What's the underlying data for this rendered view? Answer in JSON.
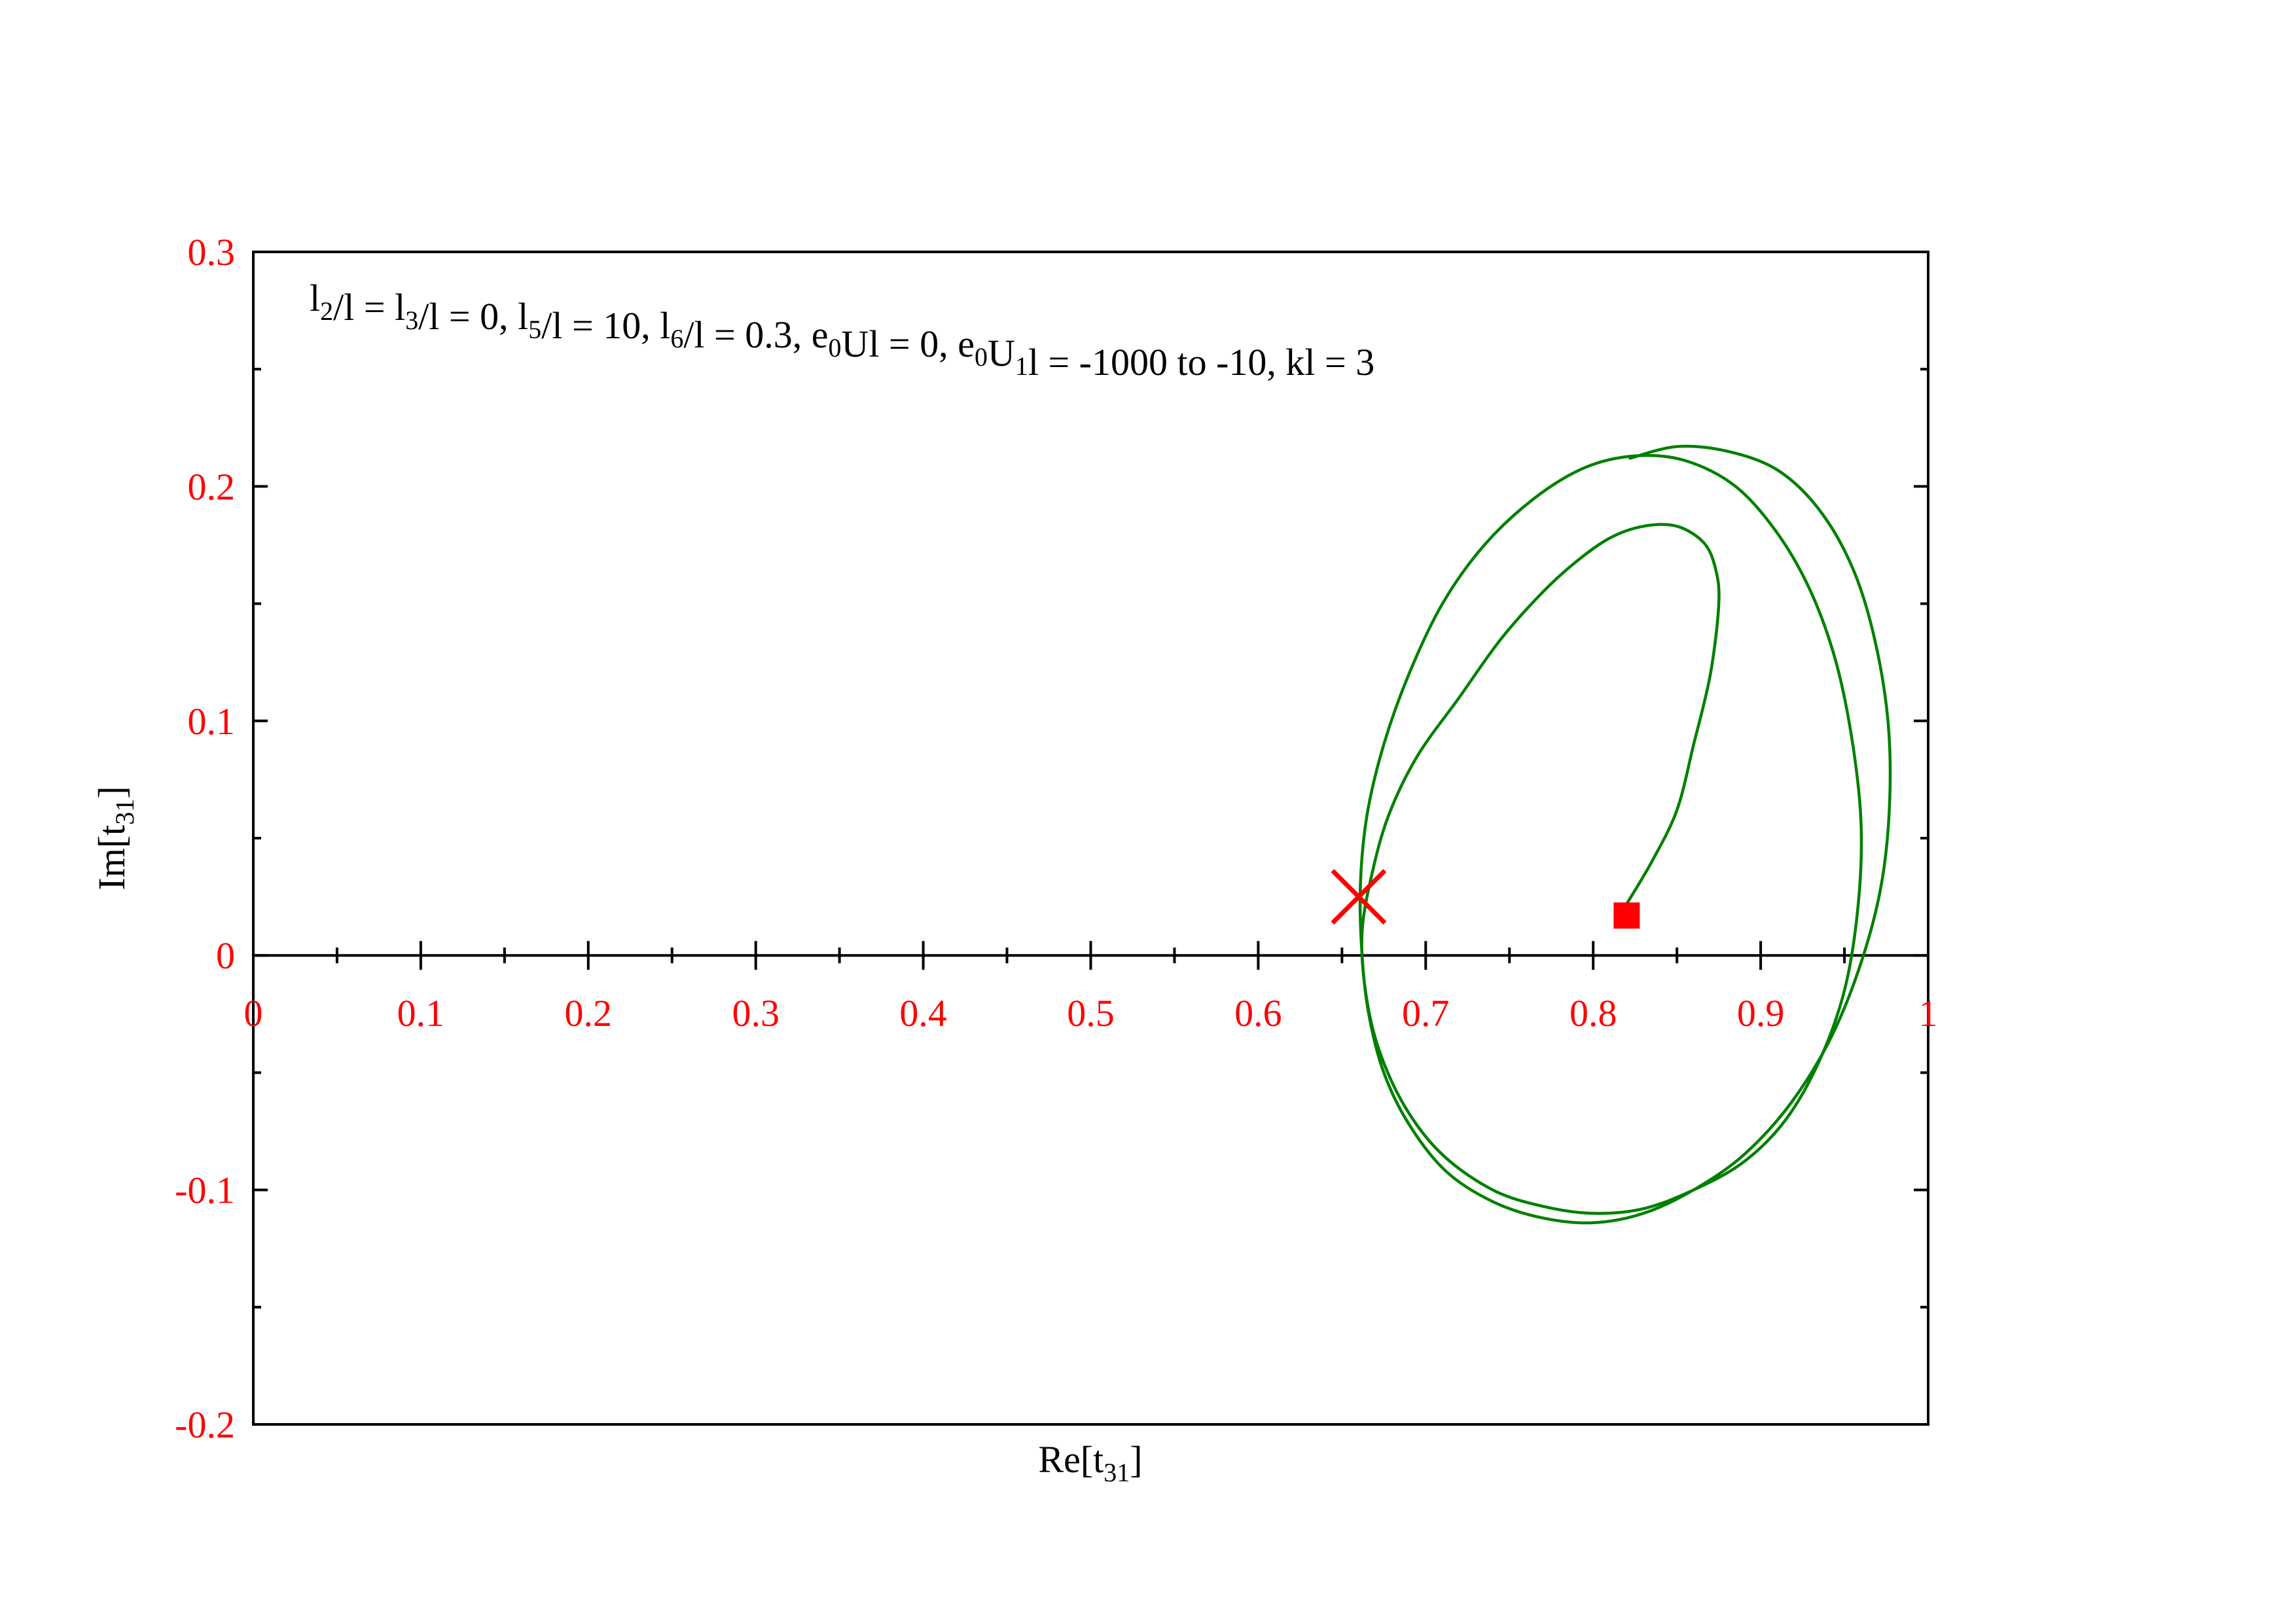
{
  "chart_data": {
    "type": "line",
    "annotation": {
      "parts": [
        {
          "t": "l",
          "sub": "2"
        },
        {
          "t": "/l = l",
          "sub": "3"
        },
        {
          "t": "/l = 0, l",
          "sub": "5"
        },
        {
          "t": "/l = 10, l",
          "sub": "6"
        },
        {
          "t": "/l = 0.3, e",
          "sub": "0"
        },
        {
          "t": "Ul = 0, e",
          "sub": "0"
        },
        {
          "t": "U",
          "sub": "1"
        },
        {
          "t": "l = -1000 to -10, kl = 3",
          "sub": ""
        }
      ]
    },
    "xlabel": {
      "main": "Re[t",
      "sub": "31",
      "end": "]"
    },
    "ylabel": {
      "main": "Im[t",
      "sub": "31",
      "end": "]"
    },
    "xlim": [
      0,
      1
    ],
    "ylim": [
      -0.2,
      0.3
    ],
    "x_ticks": [
      0,
      0.1,
      0.2,
      0.3,
      0.4,
      0.5,
      0.6,
      0.7,
      0.8,
      0.9,
      1
    ],
    "x_tick_labels": [
      "0",
      "0.1",
      "0.2",
      "0.3",
      "0.4",
      "0.5",
      "0.6",
      "0.7",
      "0.8",
      "0.9",
      "1"
    ],
    "y_ticks": [
      -0.2,
      -0.1,
      0,
      0.1,
      0.2,
      0.3
    ],
    "y_tick_labels": [
      "-0.2",
      "-0.1",
      "0",
      "0.1",
      "0.2",
      "0.3"
    ],
    "x_axis_at_y": 0,
    "grid": false,
    "colors": {
      "curve": "#008000",
      "markers": "#ff0000",
      "tick_labels": "#ff0000",
      "axes": "#000000"
    },
    "series": [
      {
        "x": [
          0.82,
          0.835,
          0.85,
          0.86,
          0.87,
          0.875,
          0.873,
          0.866,
          0.85,
          0.83,
          0.81,
          0.79,
          0.77,
          0.745,
          0.72,
          0.695,
          0.678,
          0.668,
          0.662,
          0.664,
          0.672,
          0.688,
          0.71,
          0.74,
          0.77,
          0.8,
          0.83,
          0.86,
          0.89,
          0.915,
          0.935,
          0.95,
          0.958,
          0.96,
          0.955,
          0.945,
          0.93,
          0.91,
          0.885,
          0.855,
          0.825,
          0.795,
          0.765,
          0.735,
          0.71,
          0.69,
          0.675,
          0.665,
          0.661,
          0.662,
          0.666,
          0.675,
          0.69,
          0.712,
          0.74,
          0.77,
          0.8,
          0.83,
          0.86,
          0.89,
          0.918,
          0.942,
          0.96,
          0.972,
          0.977,
          0.976,
          0.968,
          0.955,
          0.935,
          0.91,
          0.88,
          0.85,
          0.822
        ],
        "y": [
          0.022,
          0.04,
          0.062,
          0.09,
          0.12,
          0.15,
          0.165,
          0.176,
          0.183,
          0.183,
          0.178,
          0.168,
          0.155,
          0.135,
          0.11,
          0.085,
          0.06,
          0.035,
          0.01,
          -0.015,
          -0.04,
          -0.065,
          -0.085,
          -0.1,
          -0.107,
          -0.11,
          -0.108,
          -0.1,
          -0.088,
          -0.07,
          -0.045,
          -0.015,
          0.02,
          0.055,
          0.09,
          0.125,
          0.155,
          0.18,
          0.2,
          0.211,
          0.213,
          0.208,
          0.195,
          0.175,
          0.15,
          0.12,
          0.09,
          0.06,
          0.03,
          0.0,
          -0.025,
          -0.05,
          -0.072,
          -0.092,
          -0.105,
          -0.112,
          -0.114,
          -0.11,
          -0.1,
          -0.085,
          -0.063,
          -0.035,
          -0.003,
          0.03,
          0.065,
          0.1,
          0.135,
          0.165,
          0.19,
          0.207,
          0.215,
          0.217,
          0.212
        ]
      }
    ],
    "markers": [
      {
        "shape": "cross",
        "x": 0.66,
        "y": 0.025
      },
      {
        "shape": "square",
        "x": 0.82,
        "y": 0.017
      }
    ]
  }
}
